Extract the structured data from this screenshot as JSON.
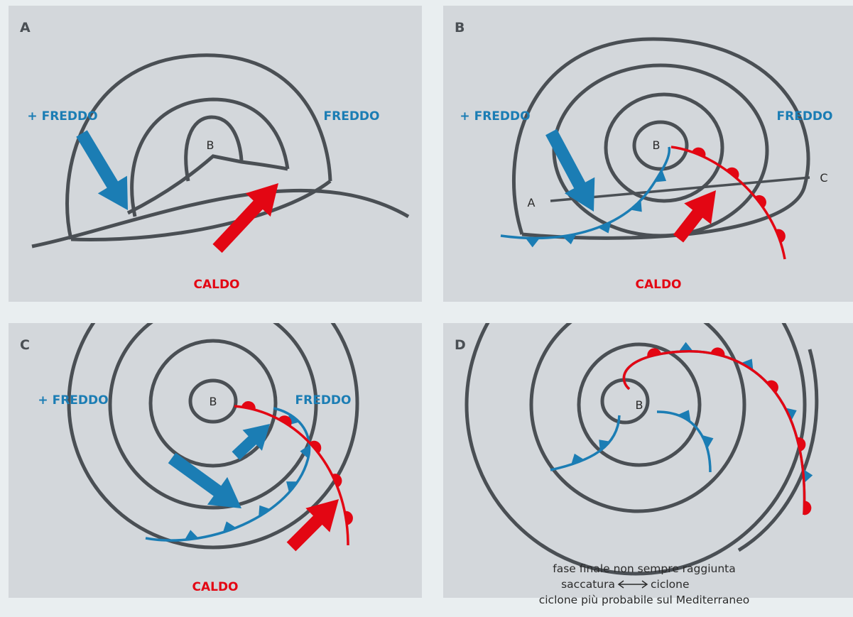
{
  "panels": [
    {
      "label": "A",
      "low": "B",
      "cold_extra": "+ FREDDO",
      "cold": "FREDDO",
      "warm": "CALDO"
    },
    {
      "label": "B",
      "low": "B",
      "cold_extra": "+ FREDDO",
      "cold": "FREDDO",
      "warm": "CALDO",
      "section_start": "A",
      "section_end": "C"
    },
    {
      "label": "C",
      "low": "B",
      "cold_extra": "+ FREDDO",
      "cold": "FREDDO",
      "warm": "CALDO"
    },
    {
      "label": "D",
      "low": "B"
    }
  ],
  "caption": {
    "line1": "fase finale non sempre raggiunta",
    "left": "saccatura",
    "right": "ciclone",
    "line3": "ciclone più probabile sul Mediterraneo"
  }
}
